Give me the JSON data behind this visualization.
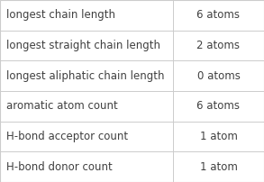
{
  "rows": [
    {
      "label": "longest chain length",
      "value": "6 atoms"
    },
    {
      "label": "longest straight chain length",
      "value": "2 atoms"
    },
    {
      "label": "longest aliphatic chain length",
      "value": "0 atoms"
    },
    {
      "label": "aromatic atom count",
      "value": "6 atoms"
    },
    {
      "label": "H-bond acceptor count",
      "value": "1 atom"
    },
    {
      "label": "H-bond donor count",
      "value": "1 atom"
    }
  ],
  "bg_color": "#ffffff",
  "border_color": "#cccccc",
  "text_color": "#404040",
  "label_fontsize": 8.5,
  "value_fontsize": 8.5,
  "col_split": 0.655,
  "outer_border_color": "#cccccc",
  "fig_width": 2.93,
  "fig_height": 2.02,
  "dpi": 100
}
